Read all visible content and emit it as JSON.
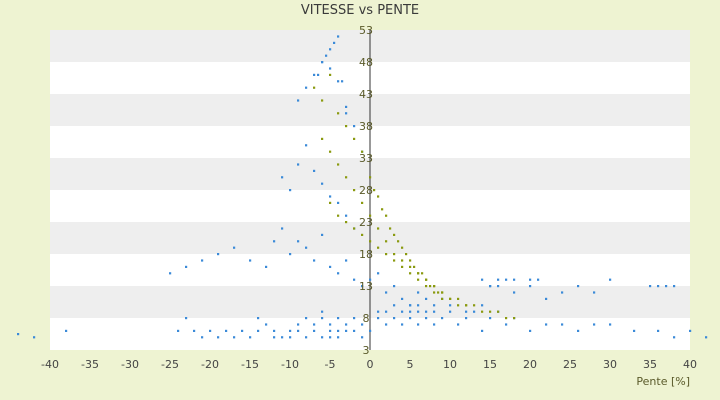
{
  "chart_data": {
    "type": "scatter",
    "title": "VITESSE vs PENTE",
    "xlabel": "Pente [%]",
    "ylabel": "",
    "xlim": [
      -40,
      40
    ],
    "ylim": [
      3,
      53
    ],
    "x_ticks": [
      -40,
      -35,
      -30,
      -25,
      -20,
      -15,
      -10,
      -5,
      0,
      5,
      10,
      15,
      20,
      25,
      30,
      35,
      40
    ],
    "y_ticks": [
      3,
      8,
      13,
      18,
      23,
      28,
      33,
      38,
      43,
      48,
      53
    ],
    "y_axis_position": "x=0",
    "grid": "horizontal alternating bands",
    "legend": "none",
    "colors": {
      "blue": "#3b8ad8",
      "olive": "#8a9a10",
      "band": "#eeeeee",
      "plot_bg": "#ffffff",
      "axis": "#333333"
    },
    "series": [
      {
        "color": "#3b8ad8",
        "x": [
          -44,
          -42,
          -38,
          -24,
          -23,
          -22,
          -21,
          -20,
          -19,
          -18,
          -17,
          -16,
          -15,
          -14,
          -14,
          -13,
          -12,
          -12,
          -11,
          -10,
          -10,
          -9,
          -9,
          -8,
          -8,
          -7,
          -7,
          -6,
          -6,
          -6,
          -5,
          -5,
          -5,
          -4,
          -4,
          -4,
          -3,
          -3,
          -2,
          -2,
          -1,
          -1,
          0,
          1,
          1,
          2,
          2,
          3,
          3,
          4,
          4,
          5,
          5,
          5,
          6,
          6,
          6,
          7,
          7,
          8,
          8,
          9,
          10,
          11,
          12,
          13,
          14,
          15,
          16,
          17,
          18,
          20,
          22,
          24,
          26,
          28,
          30,
          33,
          36,
          38,
          40,
          42,
          -9,
          -8,
          -7,
          -6,
          -5,
          -4,
          -3,
          -11,
          -10,
          -9,
          -8,
          -7,
          -6,
          -5,
          -4,
          -3,
          -2,
          -12,
          -11,
          -10,
          -9,
          -8,
          -7,
          -6,
          -5,
          -4,
          -3,
          -2,
          -1,
          0,
          1,
          2,
          3,
          4,
          5,
          6,
          7,
          8,
          9,
          10,
          12,
          14,
          15,
          16,
          18,
          20,
          22,
          24,
          26,
          28,
          30,
          35,
          36,
          37,
          38,
          20,
          21,
          18,
          17,
          16,
          15,
          14,
          -5,
          -4,
          -4.5,
          -5.5,
          -6,
          -6.5,
          -3.5,
          -3,
          -2,
          -1,
          -13,
          -15,
          -17,
          -19,
          -21,
          -23,
          -25
        ],
        "y": [
          5.5,
          5,
          6,
          6,
          8,
          6,
          5,
          6,
          5,
          6,
          5,
          6,
          5,
          6,
          8,
          7,
          6,
          5,
          5,
          6,
          5,
          7,
          6,
          8,
          5,
          6,
          7,
          8,
          5,
          9,
          6,
          5,
          7,
          6,
          8,
          5,
          7,
          6,
          8,
          6,
          5,
          7,
          6,
          9,
          8,
          7,
          9,
          10,
          8,
          9,
          7,
          9,
          8,
          10,
          9,
          7,
          10,
          8,
          9,
          9,
          7,
          8,
          9,
          7,
          8,
          9,
          6,
          8,
          9,
          7,
          8,
          6,
          7,
          7,
          6,
          7,
          7,
          6,
          6,
          5,
          6,
          5,
          42,
          44,
          46,
          48,
          47,
          45,
          40,
          30,
          28,
          32,
          35,
          31,
          29,
          27,
          26,
          24,
          22,
          20,
          22,
          18,
          20,
          19,
          17,
          21,
          16,
          15,
          17,
          14,
          13,
          14,
          15,
          12,
          13,
          11,
          10,
          12,
          11,
          10,
          11,
          10,
          9,
          10,
          13,
          14,
          12,
          13,
          11,
          12,
          13,
          12,
          14,
          13,
          13,
          13,
          13,
          14,
          14,
          14,
          14,
          13,
          13,
          14,
          50,
          52,
          51,
          49,
          48,
          46,
          45,
          41,
          38,
          34,
          16,
          17,
          19,
          18,
          17,
          16,
          15
        ]
      },
      {
        "color": "#8a9a10",
        "x": [
          -7,
          -6,
          -5,
          -4,
          -3,
          -2,
          -1,
          0,
          0.5,
          1,
          1.5,
          2,
          2.5,
          3,
          3.5,
          4,
          4.5,
          5,
          5.5,
          6,
          6.5,
          7,
          7.5,
          8,
          8.5,
          9,
          10,
          11,
          12,
          13,
          14,
          15,
          16,
          17,
          18,
          -6,
          -5,
          -4,
          -3,
          -2,
          -1,
          0,
          1,
          2,
          3,
          4,
          5,
          6,
          7,
          8,
          9,
          10,
          11,
          12,
          -5,
          -4,
          -3,
          -2,
          -1,
          0,
          1,
          2,
          3,
          4,
          5,
          6,
          7,
          8,
          9
        ],
        "y": [
          44,
          42,
          46,
          40,
          38,
          36,
          34,
          30,
          28,
          27,
          25,
          24,
          22,
          21,
          20,
          19,
          18,
          17,
          16,
          15,
          15,
          14,
          13,
          13,
          12,
          12,
          11,
          11,
          10,
          10,
          9,
          9,
          9,
          8,
          8,
          36,
          34,
          32,
          30,
          28,
          26,
          24,
          22,
          20,
          18,
          17,
          16,
          15,
          14,
          13,
          12,
          11,
          10,
          10,
          26,
          24,
          23,
          22,
          21,
          20,
          19,
          18,
          17,
          16,
          15,
          14,
          13,
          12,
          11
        ]
      }
    ]
  }
}
